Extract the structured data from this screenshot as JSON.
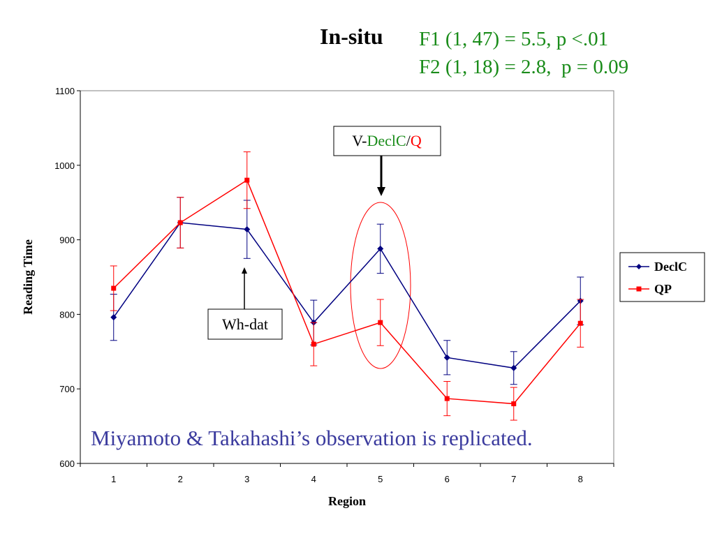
{
  "slide": {
    "title": "In-situ",
    "stats": [
      {
        "prefix": "F1 (1, 47) = 5.5, p <.01"
      },
      {
        "prefix": "F2 (1, 18) = 2.8,  p = 0.09"
      }
    ],
    "observation": "Miyamoto & Takahashi’s observation is replicated."
  },
  "callouts": {
    "wh_dat": "Wh-dat",
    "v_label": {
      "prefix": "V-",
      "declc": "DeclC",
      "slash": "/",
      "q": "Q"
    }
  },
  "colors": {
    "declc": "#000080",
    "qp": "#ff0000",
    "stats_green": "#1a8c1a",
    "observation_blue": "#3b3b9e"
  },
  "chart_data": {
    "type": "line",
    "categories": [
      "1",
      "2",
      "3",
      "4",
      "5",
      "6",
      "7",
      "8"
    ],
    "xlabel": "Region",
    "ylabel": "Reading Time",
    "ylim": [
      600,
      1100
    ],
    "yticks": [
      "600",
      "700",
      "800",
      "900",
      "1000",
      "1100"
    ],
    "legend": "right",
    "series": [
      {
        "name": "DeclC",
        "color": "#000080",
        "marker": "diamond",
        "values": [
          796,
          923,
          914,
          789,
          888,
          742,
          728,
          818
        ],
        "errors": [
          31,
          34,
          39,
          30,
          33,
          23,
          22,
          32
        ]
      },
      {
        "name": "QP",
        "color": "#ff0000",
        "marker": "square",
        "values": [
          835,
          923,
          980,
          760,
          789,
          687,
          680,
          788
        ],
        "errors": [
          30,
          34,
          38,
          29,
          31,
          23,
          22,
          32
        ]
      }
    ]
  }
}
